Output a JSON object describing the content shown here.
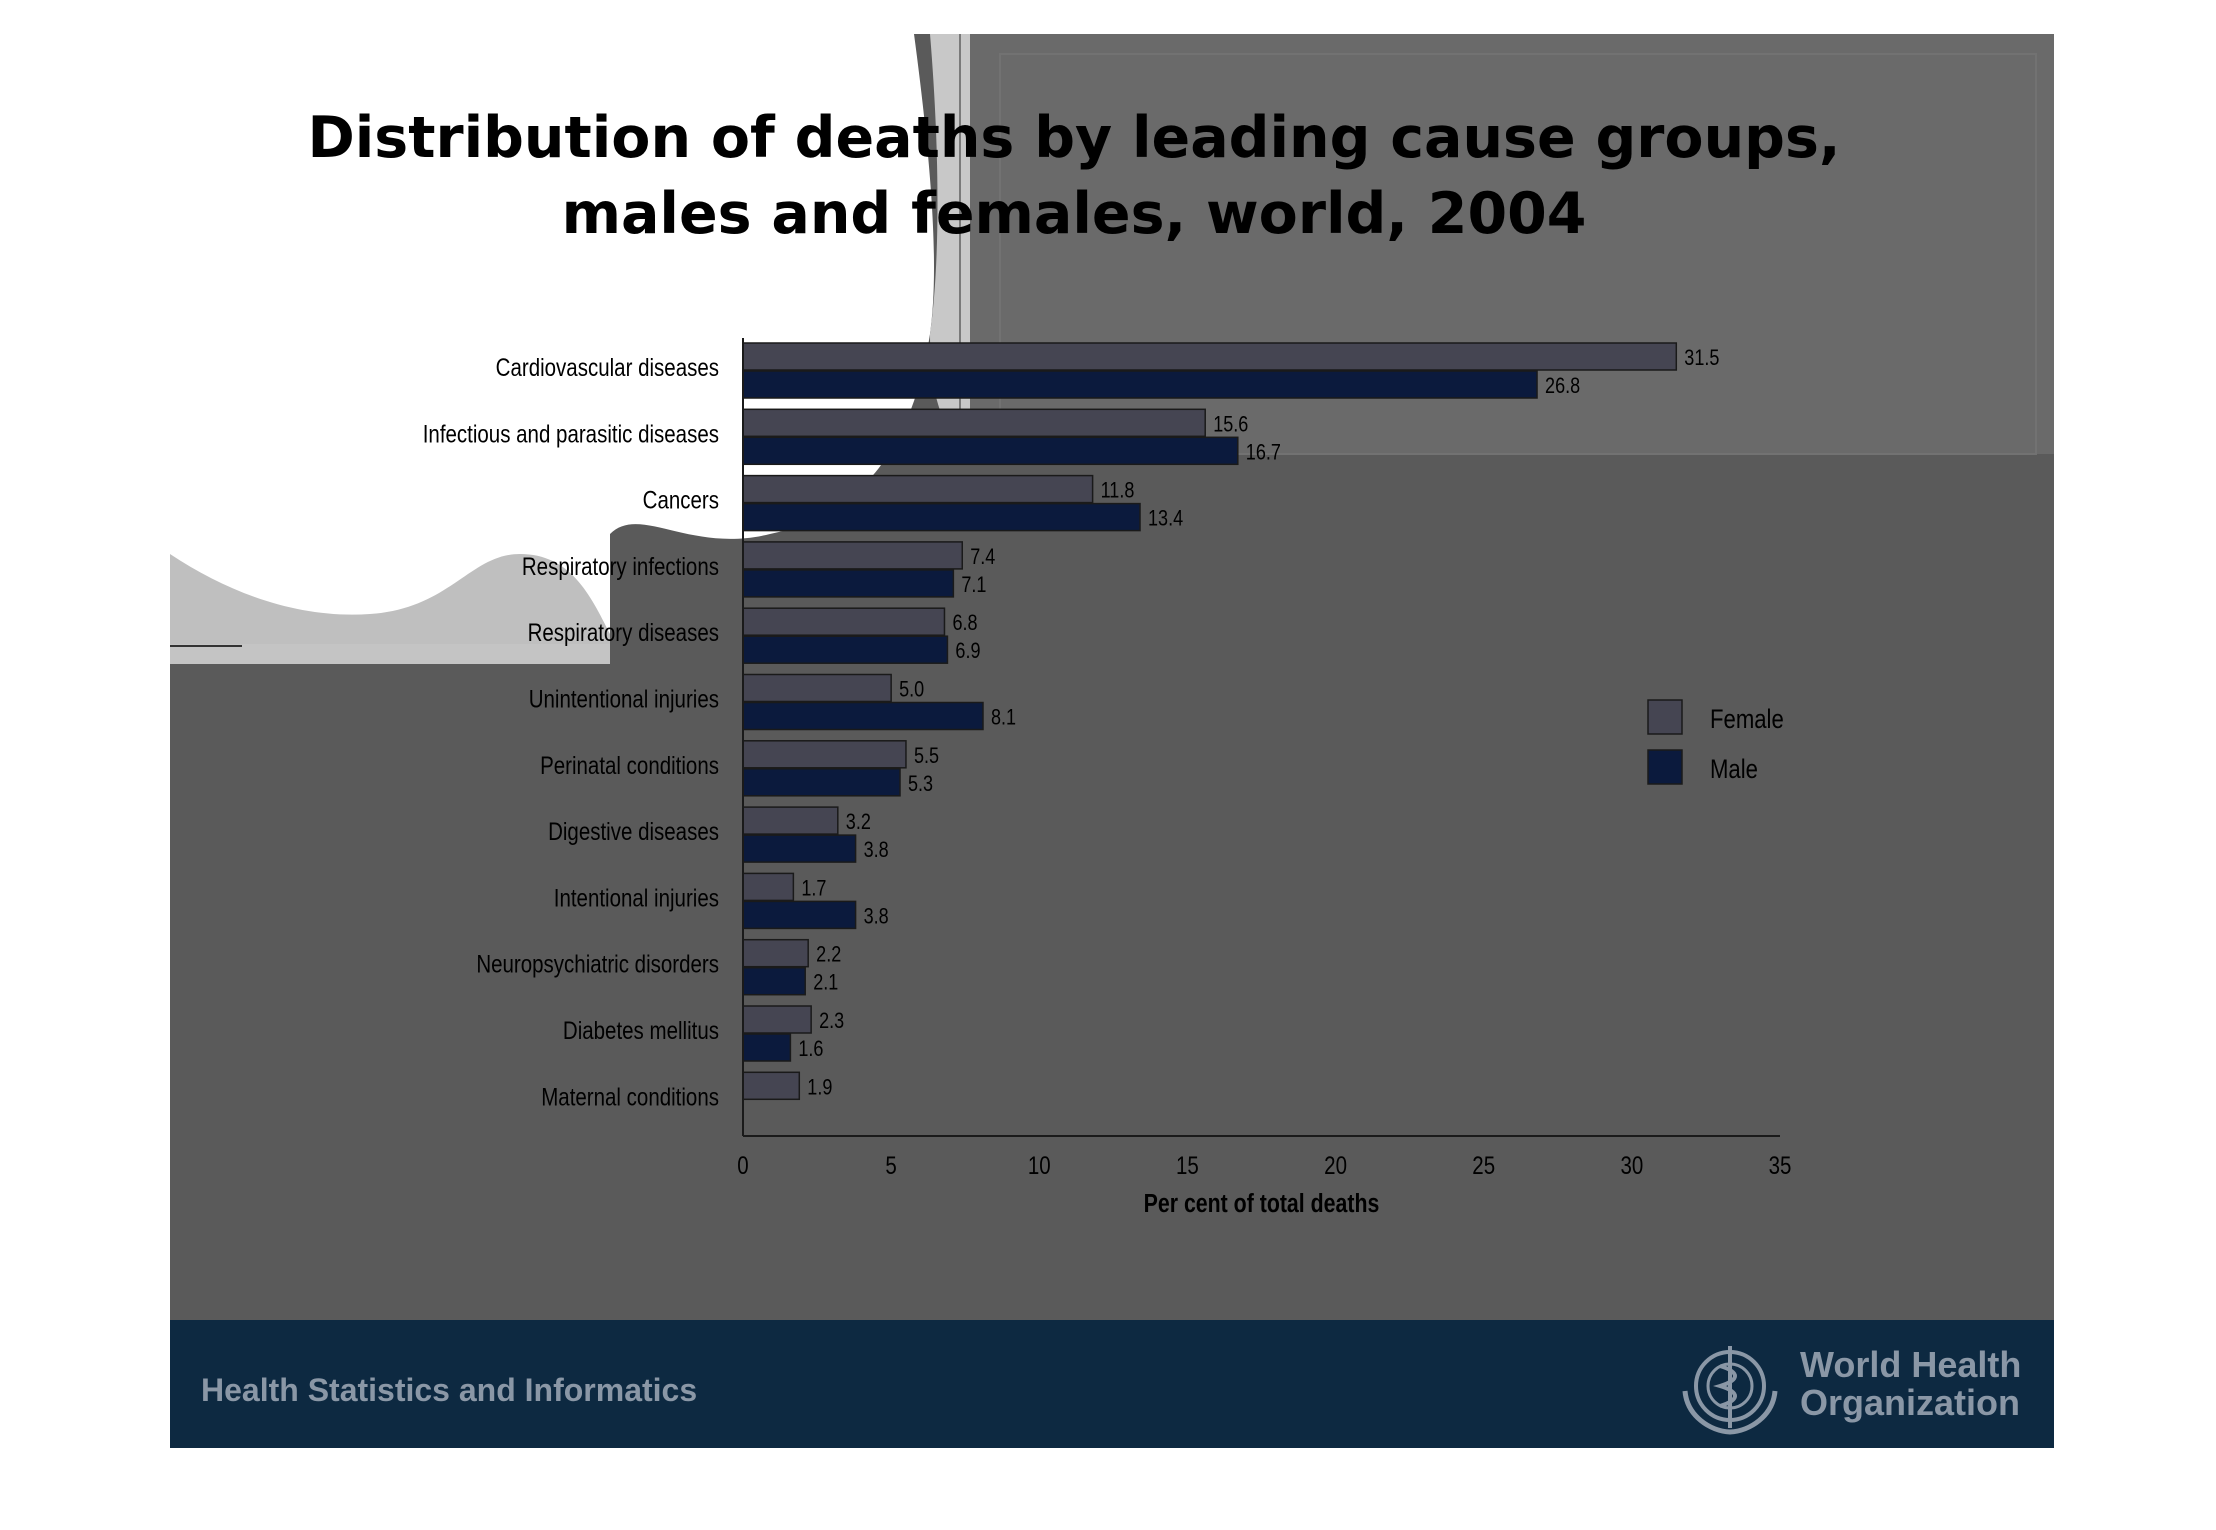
{
  "slide": {
    "title_line1": "Distribution of deaths by leading cause groups,",
    "title_line2": "males and females, world, 2004"
  },
  "footer": {
    "text": "Health Statistics and Informatics",
    "org_line1": "World Health",
    "org_line2": "Organization",
    "logo_icon": "who-emblem-icon"
  },
  "colors": {
    "female": "#454552",
    "male": "#0b1a3d",
    "slide_bg": "#5a5a5a",
    "footer_bg": "#0d2941"
  },
  "chart_data": {
    "type": "bar",
    "orientation": "horizontal",
    "categories": [
      "Cardiovascular diseases",
      "Infectious and parasitic diseases",
      "Cancers",
      "Respiratory infections",
      "Respiratory diseases",
      "Unintentional injuries",
      "Perinatal conditions",
      "Digestive diseases",
      "Intentional injuries",
      "Neuropsychiatric disorders",
      "Diabetes mellitus",
      "Maternal conditions"
    ],
    "series": [
      {
        "name": "Female",
        "values": [
          31.5,
          15.6,
          11.8,
          7.4,
          6.8,
          5.0,
          5.5,
          3.2,
          1.7,
          2.2,
          2.3,
          1.9
        ],
        "labels": [
          "31.5",
          "15.6",
          "11.8",
          "7.4",
          "6.8",
          "5.0",
          "5.5",
          "3.2",
          "1.7",
          "2.2",
          "2.3",
          "1.9"
        ]
      },
      {
        "name": "Male",
        "values": [
          26.8,
          16.7,
          13.4,
          7.1,
          6.9,
          8.1,
          5.3,
          3.8,
          3.8,
          2.1,
          1.6,
          null
        ],
        "labels": [
          "26.8",
          "16.7",
          "13.4",
          "7.1",
          "6.9",
          "8.1",
          "5.3",
          "3.8",
          "3.8",
          "2.1",
          "1.6",
          null
        ]
      }
    ],
    "xlabel": "Per cent of total deaths",
    "xlim": [
      0,
      35
    ],
    "xticks": [
      "0",
      "5",
      "10",
      "15",
      "20",
      "25",
      "30",
      "35"
    ],
    "legend": {
      "position": "right",
      "entries": [
        "Female",
        "Male"
      ]
    },
    "grid": false
  }
}
